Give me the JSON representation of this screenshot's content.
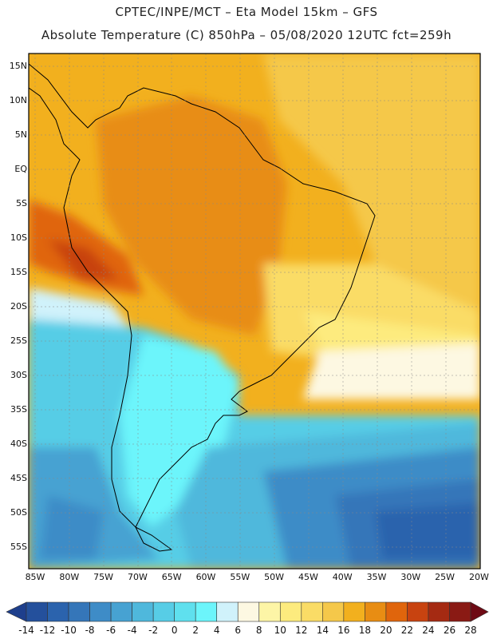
{
  "header": {
    "line1": "CPTEC/INPE/MCT –  Eta Model 15km – GFS",
    "line2": "Absolute Temperature (C) 850hPa – 05/08/2020 12UTC fct=259h"
  },
  "axes": {
    "lat_labels": [
      "15N",
      "10N",
      "5N",
      "EQ",
      "5S",
      "10S",
      "15S",
      "20S",
      "25S",
      "30S",
      "35S",
      "40S",
      "45S",
      "50S",
      "55S"
    ],
    "lon_labels": [
      "85W",
      "80W",
      "75W",
      "70W",
      "65W",
      "60W",
      "55W",
      "50W",
      "45W",
      "40W",
      "35W",
      "30W",
      "25W",
      "20W"
    ]
  },
  "colorbar": {
    "labels": [
      "-14",
      "-12",
      "-10",
      "-8",
      "-6",
      "-4",
      "-2",
      "0",
      "2",
      "4",
      "6",
      "8",
      "10",
      "12",
      "14",
      "16",
      "18",
      "20",
      "22",
      "24",
      "26",
      "28"
    ],
    "colors": [
      "#1e3f8c",
      "#24509c",
      "#2b63ad",
      "#3576b9",
      "#3e8cc7",
      "#47a2d2",
      "#4fb8dc",
      "#57cde6",
      "#5fe0ee",
      "#6cf5fb",
      "#d0f2fb",
      "#fdf8e2",
      "#fdf5a6",
      "#fdeb7e",
      "#fadc66",
      "#f5c84a",
      "#f2b01e",
      "#e88d13",
      "#e0650c",
      "#c84310",
      "#a52a12",
      "#8a1a14",
      "#6e0a14"
    ]
  },
  "chart_data": {
    "type": "heatmap",
    "title": "Absolute Temperature (C) 850hPa",
    "model": "Eta Model 15km - GFS",
    "run": "05/08/2020 12UTC",
    "forecast_hours": 259,
    "lon_range": [
      -85,
      -20
    ],
    "lat_range": [
      -57,
      17
    ],
    "units": "C",
    "levels": [
      -14,
      -12,
      -10,
      -8,
      -6,
      -4,
      -2,
      0,
      2,
      4,
      6,
      8,
      10,
      12,
      14,
      16,
      18,
      20,
      22,
      24,
      26,
      28
    ],
    "approx_field_regions": [
      {
        "region": "northern South America / Amazon",
        "value_range": [
          16,
          20
        ]
      },
      {
        "region": "Peru-Bolivia coast",
        "value_range": [
          20,
          22
        ]
      },
      {
        "region": "tropical Atlantic",
        "value_range": [
          14,
          18
        ]
      },
      {
        "region": "southern Brazil",
        "value_range": [
          10,
          14
        ]
      },
      {
        "region": "Uruguay / Rio de la Plata",
        "value_range": [
          4,
          8
        ]
      },
      {
        "region": "Argentina / Chile",
        "value_range": [
          -2,
          4
        ]
      },
      {
        "region": "Southern Ocean",
        "value_range": [
          -12,
          -6
        ]
      }
    ]
  }
}
